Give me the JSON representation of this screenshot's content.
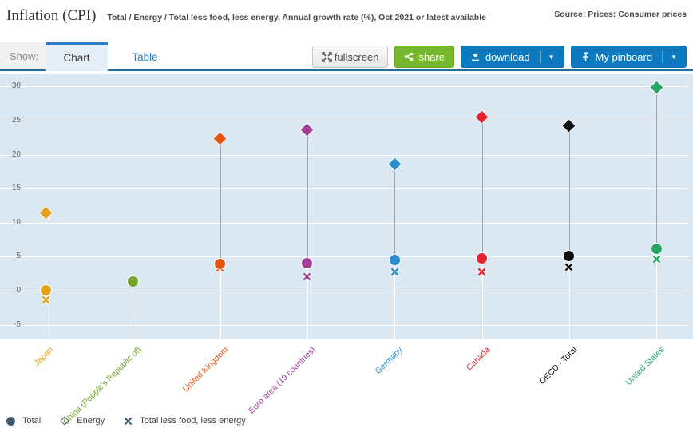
{
  "header": {
    "title": "Inflation (CPI)",
    "subtitle": "Total / Energy / Total less food, less energy, Annual growth rate (%), Oct 2021 or latest available",
    "source": "Source: Prices: Consumer prices"
  },
  "toolbar": {
    "show_label": "Show:",
    "tabs": [
      {
        "label": "Chart",
        "active": true
      },
      {
        "label": "Table",
        "active": false
      }
    ],
    "buttons": {
      "fullscreen": "fullscreen",
      "share": "share",
      "download": "download",
      "pinboard": "My pinboard"
    },
    "colors": {
      "share_green": "#76b82a",
      "action_blue": "#0d7abf",
      "tab_accent": "#2c7fc5"
    }
  },
  "chart_data": {
    "type": "scatter",
    "title": "Inflation (CPI), Annual growth rate (%), Oct 2021 or latest available",
    "categories": [
      "Japan",
      "China (People's Republic of)",
      "United Kingdom",
      "Euro area (19 countries)",
      "Germany",
      "Canada",
      "OECD - Total",
      "United States"
    ],
    "category_colors": [
      "#e0a422",
      "#71a52f",
      "#e55412",
      "#a03e99",
      "#2b8cce",
      "#e42330",
      "#0d0d0d",
      "#2aa567"
    ],
    "series": [
      {
        "name": "Total",
        "marker": "circle",
        "values": [
          0.1,
          1.4,
          3.9,
          4.1,
          4.5,
          4.7,
          5.1,
          6.2
        ]
      },
      {
        "name": "Energy",
        "marker": "diamond",
        "values": [
          11.5,
          null,
          22.4,
          23.7,
          18.6,
          25.5,
          24.2,
          29.9
        ]
      },
      {
        "name": "Total less food, less energy",
        "marker": "x",
        "values": [
          -1.3,
          null,
          3.4,
          2.0,
          2.8,
          2.7,
          3.5,
          4.6
        ]
      }
    ],
    "ylim": [
      -5,
      30
    ],
    "yticks": [
      30,
      25,
      20,
      15,
      10,
      5,
      0,
      -5
    ],
    "xlabel": "",
    "ylabel": "",
    "grid": true,
    "legend_position": "bottom",
    "plot_bg": "#dce8f1",
    "gridline_color": "#ffffff",
    "connector_color": "#a0a6ab",
    "legend_marker_color": "#3d5a6e"
  }
}
